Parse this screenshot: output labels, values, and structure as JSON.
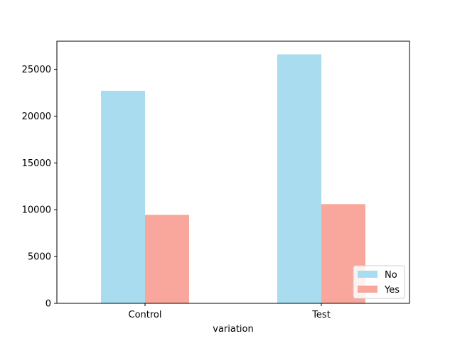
{
  "chart_data": {
    "type": "bar",
    "categories": [
      "Control",
      "Test"
    ],
    "series": [
      {
        "name": "No",
        "values": [
          22700,
          26600
        ],
        "color": "#a8dcee"
      },
      {
        "name": "Yes",
        "values": [
          9450,
          10600
        ],
        "color": "#f9a79c"
      }
    ],
    "xlabel": "variation",
    "ylabel": "",
    "ylim": [
      0,
      28000
    ],
    "yticks": [
      0,
      5000,
      10000,
      15000,
      20000,
      25000
    ],
    "legend": "lower-right",
    "grid": false
  }
}
